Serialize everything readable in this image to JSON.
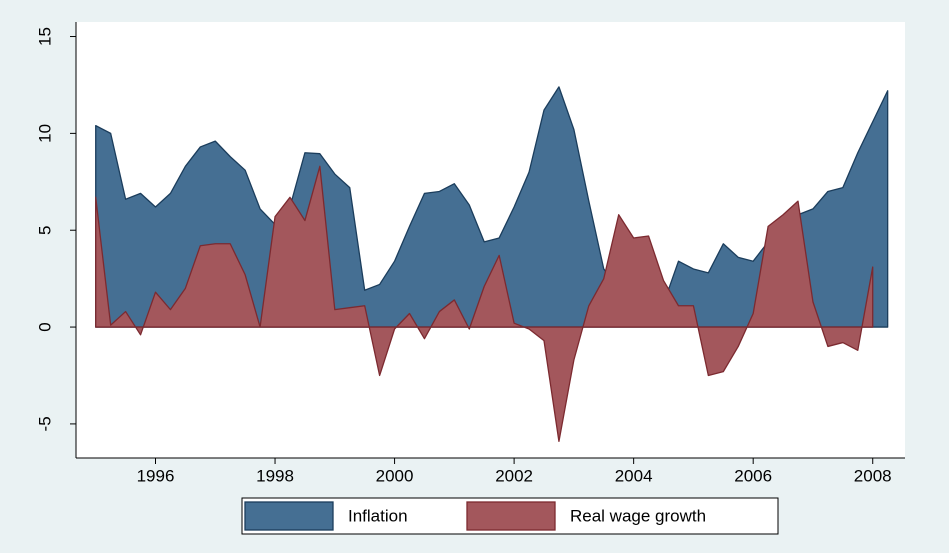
{
  "chart_data": {
    "type": "area",
    "x": [
      1995,
      1995.25,
      1995.5,
      1995.75,
      1996,
      1996.25,
      1996.5,
      1996.75,
      1997,
      1997.25,
      1997.5,
      1997.75,
      1998,
      1998.25,
      1998.5,
      1998.75,
      1999,
      1999.25,
      1999.5,
      1999.75,
      2000,
      2000.25,
      2000.5,
      2000.75,
      2001,
      2001.25,
      2001.5,
      2001.75,
      2002,
      2002.25,
      2002.5,
      2002.75,
      2003,
      2003.25,
      2003.5,
      2003.75,
      2004,
      2004.25,
      2004.5,
      2004.75,
      2005,
      2005.25,
      2005.5,
      2005.75,
      2006,
      2006.25,
      2006.5,
      2006.75,
      2007,
      2007.25,
      2007.5,
      2007.75,
      2008,
      2008.25
    ],
    "series": [
      {
        "name": "Inflation",
        "color": "#456f93",
        "outline": "#1b3d5c",
        "values": [
          10.4,
          10.0,
          6.6,
          6.9,
          6.2,
          6.9,
          8.3,
          9.3,
          9.6,
          8.8,
          8.1,
          6.1,
          5.3,
          6.2,
          9.0,
          8.95,
          7.9,
          7.2,
          1.9,
          2.2,
          3.4,
          5.2,
          6.9,
          7.0,
          7.4,
          6.3,
          4.4,
          4.6,
          6.2,
          8.0,
          11.2,
          12.4,
          10.2,
          6.5,
          3.0,
          2.0,
          1.5,
          1.0,
          1.2,
          3.4,
          3.0,
          2.8,
          4.3,
          3.6,
          3.4,
          4.4,
          5.2,
          5.8,
          6.1,
          7.0,
          7.2,
          9.0,
          10.6,
          12.2
        ]
      },
      {
        "name": "Real wage growth",
        "color": "#a3575c",
        "outline": "#7c2a30",
        "values": [
          6.7,
          0.1,
          0.8,
          -0.4,
          1.8,
          0.9,
          2.0,
          4.2,
          4.3,
          4.3,
          2.7,
          0.0,
          5.7,
          6.7,
          5.5,
          8.3,
          0.9,
          1.0,
          1.1,
          -2.5,
          -0.1,
          0.7,
          -0.6,
          0.8,
          1.4,
          -0.1,
          2.1,
          3.7,
          0.2,
          -0.1,
          -0.7,
          -5.9,
          -1.7,
          1.1,
          2.5,
          5.8,
          4.6,
          4.7,
          2.4,
          1.1,
          1.1,
          -2.5,
          -2.3,
          -1.0,
          0.7,
          5.2,
          5.8,
          6.5,
          1.3,
          -1.0,
          -0.8,
          -1.2,
          3.1,
          null
        ]
      }
    ],
    "xlim": [
      1994.67,
      2008.54
    ],
    "ylim": [
      -6.76,
      15.75
    ],
    "xticks": [
      1996,
      1998,
      2000,
      2002,
      2004,
      2006,
      2008
    ],
    "yticks": [
      -5,
      0,
      5,
      10,
      15
    ],
    "grid": false,
    "legend": "bottom"
  }
}
